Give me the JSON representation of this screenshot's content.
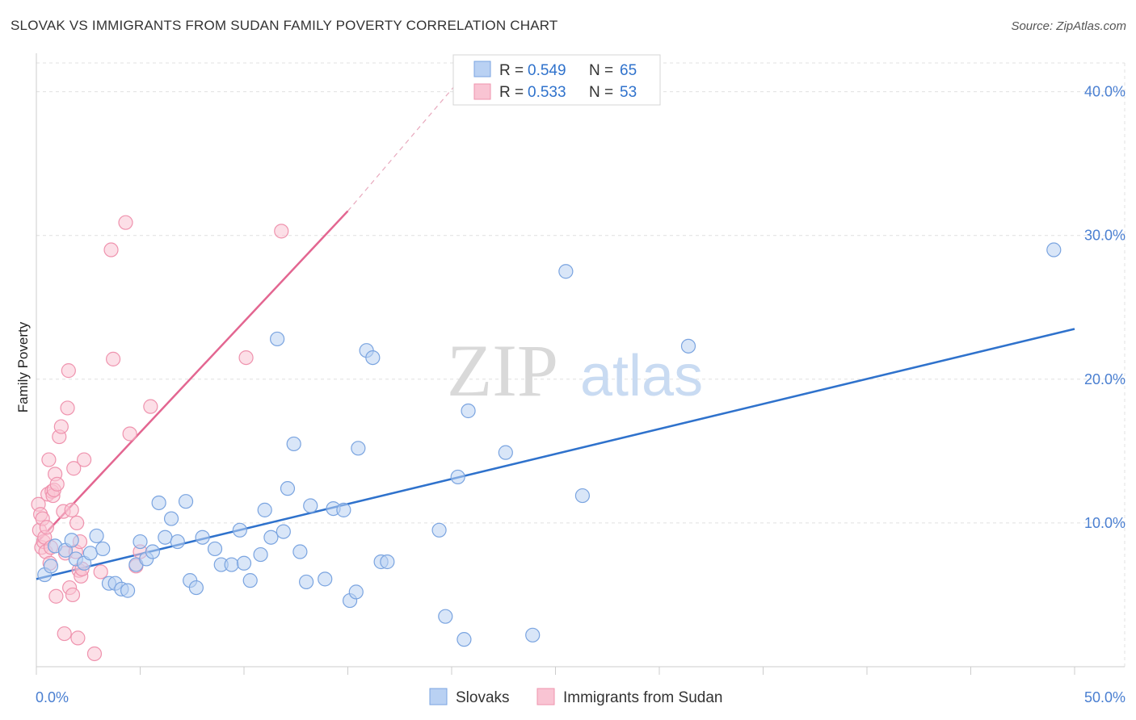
{
  "title": "SLOVAK VS IMMIGRANTS FROM SUDAN FAMILY POVERTY CORRELATION CHART",
  "source": "Source: ZipAtlas.com",
  "watermark": {
    "zip": "ZIP",
    "atlas": "atlas"
  },
  "legend": {
    "r_label": "R =",
    "n_label": "N =",
    "entries": [
      {
        "r": "0.549",
        "n": "65",
        "fill": "#b9d1f3",
        "stroke": "#7aa4e0"
      },
      {
        "r": "0.533",
        "n": "53",
        "fill": "#f9c4d3",
        "stroke": "#ef93ae"
      }
    ]
  },
  "chart_data": {
    "type": "scatter",
    "xlabel": "",
    "ylabel": "Family Poverty",
    "xlim": [
      0,
      50
    ],
    "ylim": [
      0,
      42
    ],
    "x_tick_labels": [
      "0.0%",
      "50.0%"
    ],
    "y_ticks": [
      10,
      20,
      30,
      40
    ],
    "y_tick_labels": [
      "10.0%",
      "20.0%",
      "30.0%",
      "40.0%"
    ],
    "grid": true,
    "legend_position": "top-center",
    "series": [
      {
        "name": "Slovaks",
        "color": "#7aa4e0",
        "fill": "#b9d1f3",
        "line_color": "#2f72cc",
        "trend": {
          "x0": 0,
          "y0": 6.1,
          "x1": 50,
          "y1": 23.5
        },
        "points": [
          [
            0.4,
            6.4
          ],
          [
            0.7,
            7.0
          ],
          [
            0.9,
            8.4
          ],
          [
            1.4,
            8.1
          ],
          [
            1.7,
            8.8
          ],
          [
            1.9,
            7.5
          ],
          [
            2.3,
            7.2
          ],
          [
            2.6,
            7.9
          ],
          [
            2.9,
            9.1
          ],
          [
            3.2,
            8.2
          ],
          [
            3.5,
            5.8
          ],
          [
            3.8,
            5.8
          ],
          [
            4.1,
            5.4
          ],
          [
            4.4,
            5.3
          ],
          [
            4.8,
            7.1
          ],
          [
            5.0,
            8.7
          ],
          [
            5.3,
            7.5
          ],
          [
            5.6,
            8.0
          ],
          [
            5.9,
            11.4
          ],
          [
            6.2,
            9.0
          ],
          [
            6.5,
            10.3
          ],
          [
            6.8,
            8.7
          ],
          [
            7.2,
            11.5
          ],
          [
            7.4,
            6.0
          ],
          [
            7.7,
            5.5
          ],
          [
            8.0,
            9.0
          ],
          [
            8.6,
            8.2
          ],
          [
            8.9,
            7.1
          ],
          [
            9.4,
            7.1
          ],
          [
            9.8,
            9.5
          ],
          [
            10.0,
            7.2
          ],
          [
            10.3,
            6.0
          ],
          [
            10.8,
            7.8
          ],
          [
            11.0,
            10.9
          ],
          [
            11.3,
            9.0
          ],
          [
            11.6,
            22.8
          ],
          [
            11.9,
            9.4
          ],
          [
            12.1,
            12.4
          ],
          [
            12.4,
            15.5
          ],
          [
            12.7,
            8.0
          ],
          [
            13.0,
            5.9
          ],
          [
            13.2,
            11.2
          ],
          [
            13.9,
            6.1
          ],
          [
            14.3,
            11.0
          ],
          [
            14.8,
            10.9
          ],
          [
            15.1,
            4.6
          ],
          [
            15.4,
            5.2
          ],
          [
            15.5,
            15.2
          ],
          [
            15.9,
            22.0
          ],
          [
            16.2,
            21.5
          ],
          [
            16.6,
            7.3
          ],
          [
            16.9,
            7.3
          ],
          [
            19.4,
            9.5
          ],
          [
            19.7,
            3.5
          ],
          [
            20.3,
            13.2
          ],
          [
            20.6,
            1.9
          ],
          [
            20.8,
            17.8
          ],
          [
            22.6,
            14.9
          ],
          [
            23.9,
            2.2
          ],
          [
            25.5,
            27.5
          ],
          [
            26.3,
            11.9
          ],
          [
            31.4,
            22.3
          ],
          [
            49.0,
            29.0
          ]
        ]
      },
      {
        "name": "Immigrants from Sudan",
        "color": "#ef93ae",
        "fill": "#f9c4d3",
        "line_color": "#e36691",
        "trend": {
          "x0": 0,
          "y0": 8.6,
          "x1": 15,
          "y1": 31.7
        },
        "trend_ext": {
          "x0": 15,
          "y0": 31.7,
          "x1": 20.2,
          "y1": 40.5
        },
        "points": [
          [
            0.1,
            11.3
          ],
          [
            0.15,
            9.5
          ],
          [
            0.2,
            10.6
          ],
          [
            0.25,
            8.3
          ],
          [
            0.3,
            10.3
          ],
          [
            0.35,
            8.7
          ],
          [
            0.4,
            9.0
          ],
          [
            0.45,
            8.0
          ],
          [
            0.5,
            9.7
          ],
          [
            0.55,
            12.0
          ],
          [
            0.6,
            14.4
          ],
          [
            0.65,
            7.2
          ],
          [
            0.7,
            8.3
          ],
          [
            0.75,
            12.2
          ],
          [
            0.8,
            11.9
          ],
          [
            0.85,
            12.3
          ],
          [
            0.9,
            13.4
          ],
          [
            0.95,
            4.9
          ],
          [
            1.0,
            12.7
          ],
          [
            1.1,
            16.0
          ],
          [
            1.2,
            16.7
          ],
          [
            1.3,
            10.8
          ],
          [
            1.35,
            2.3
          ],
          [
            1.4,
            7.9
          ],
          [
            1.5,
            18.0
          ],
          [
            1.55,
            20.6
          ],
          [
            1.6,
            5.5
          ],
          [
            1.7,
            10.9
          ],
          [
            1.75,
            5.0
          ],
          [
            1.8,
            13.8
          ],
          [
            1.9,
            8.0
          ],
          [
            1.95,
            10.0
          ],
          [
            2.0,
            2.0
          ],
          [
            2.05,
            6.7
          ],
          [
            2.1,
            8.7
          ],
          [
            2.15,
            6.3
          ],
          [
            2.2,
            6.8
          ],
          [
            2.3,
            14.4
          ],
          [
            2.8,
            0.9
          ],
          [
            3.1,
            6.6
          ],
          [
            3.6,
            29.0
          ],
          [
            3.7,
            21.4
          ],
          [
            4.3,
            30.9
          ],
          [
            4.5,
            16.2
          ],
          [
            4.8,
            7.0
          ],
          [
            5.0,
            8.0
          ],
          [
            5.5,
            18.1
          ],
          [
            10.1,
            21.5
          ],
          [
            11.8,
            30.3
          ]
        ]
      }
    ]
  }
}
